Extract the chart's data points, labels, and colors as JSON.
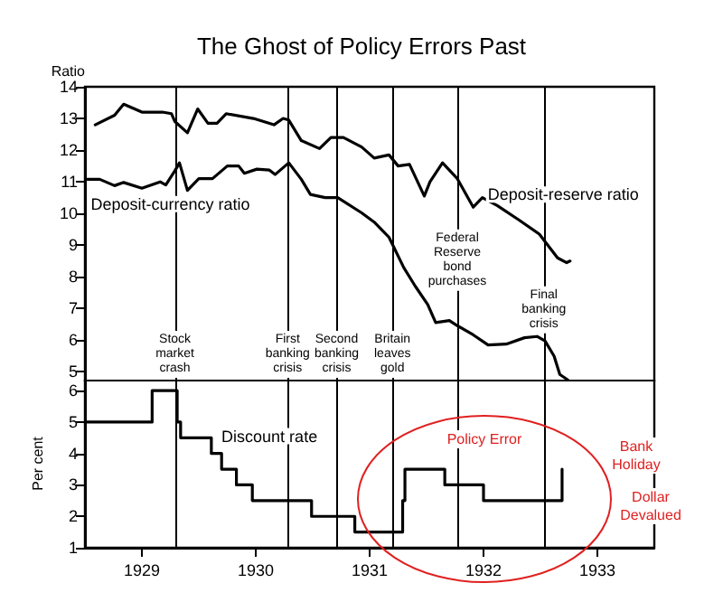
{
  "chart_data": [
    {
      "type": "line",
      "title": "The Ghost of Policy Errors Past",
      "ylabel": "Ratio",
      "xlim": [
        1929,
        1934
      ],
      "ylim": [
        4.7,
        14
      ],
      "yticks": [
        5,
        6,
        7,
        8,
        9,
        10,
        11,
        12,
        13,
        14
      ],
      "tick_labels": "y",
      "series": [
        {
          "name": "Deposit-reserve ratio",
          "color": "#000000",
          "x": [
            1929.09,
            1929.26,
            1929.34,
            1929.5,
            1929.68,
            1929.76,
            1929.79,
            1929.9,
            1929.99,
            1930.08,
            1930.16,
            1930.24,
            1930.48,
            1930.66,
            1930.74,
            1930.79,
            1930.9,
            1931.06,
            1931.16,
            1931.27,
            1931.43,
            1931.54,
            1931.67,
            1931.75,
            1931.85,
            1931.98,
            1932.03,
            1932.14,
            1932.27,
            1932.41,
            1932.49,
            1932.62,
            1932.81,
            1932.99,
            1933.15,
            1933.23,
            1933.26
          ],
          "values": [
            12.8,
            13.1,
            13.45,
            13.2,
            13.2,
            13.15,
            12.9,
            12.55,
            13.3,
            12.85,
            12.85,
            13.15,
            13.0,
            12.8,
            13.0,
            12.95,
            12.3,
            12.05,
            12.4,
            12.4,
            12.1,
            11.75,
            11.85,
            11.5,
            11.55,
            10.55,
            11.0,
            11.6,
            11.1,
            10.2,
            10.5,
            10.25,
            9.8,
            9.35,
            8.6,
            8.45,
            8.5
          ]
        },
        {
          "name": "Deposit-currency ratio",
          "color": "#000000",
          "x": [
            1929.02,
            1929.13,
            1929.26,
            1929.34,
            1929.5,
            1929.58,
            1929.66,
            1929.71,
            1929.79,
            1929.83,
            1929.9,
            1930.0,
            1930.12,
            1930.25,
            1930.35,
            1930.4,
            1930.51,
            1930.62,
            1930.67,
            1930.79,
            1930.9,
            1930.98,
            1931.11,
            1931.22,
            1931.43,
            1931.54,
            1931.67,
            1931.8,
            1931.9,
            1932.01,
            1932.08,
            1932.2,
            1932.27,
            1932.41,
            1932.54,
            1932.7,
            1932.86,
            1932.97,
            1933.04,
            1933.12,
            1933.17,
            1933.24
          ],
          "values": [
            11.08,
            11.08,
            10.88,
            10.98,
            10.8,
            10.9,
            11.0,
            10.9,
            11.35,
            11.6,
            10.73,
            11.1,
            11.1,
            11.5,
            11.5,
            11.27,
            11.4,
            11.37,
            11.23,
            11.6,
            11.08,
            10.6,
            10.5,
            10.5,
            10.02,
            9.73,
            9.25,
            8.29,
            7.71,
            7.13,
            6.56,
            6.62,
            6.46,
            6.17,
            5.85,
            5.88,
            6.08,
            6.12,
            5.98,
            5.5,
            4.92,
            4.75
          ]
        }
      ],
      "ref_lines": [
        {
          "axis": "x",
          "value": 1929.79,
          "label": "Stock market crash"
        },
        {
          "axis": "x",
          "value": 1930.78,
          "label": "First banking crisis"
        },
        {
          "axis": "x",
          "value": 1931.21,
          "label": "Second banking crisis"
        },
        {
          "axis": "x",
          "value": 1931.7,
          "label": "Britain leaves gold"
        },
        {
          "axis": "x",
          "value": 1932.27,
          "label": "Federal Reserve bond purchases"
        },
        {
          "axis": "x",
          "value": 1933.03,
          "label": "Final banking crisis"
        }
      ]
    },
    {
      "type": "step",
      "ylabel": "Per cent",
      "xlim": [
        1929,
        1934
      ],
      "ylim": [
        1,
        6.35
      ],
      "yticks": [
        1,
        2,
        3,
        4,
        5,
        6
      ],
      "xticks": [
        {
          "value": 1929.5,
          "label": "1929"
        },
        {
          "value": 1930.5,
          "label": "1930"
        },
        {
          "value": 1931.5,
          "label": "1931"
        },
        {
          "value": 1932.5,
          "label": "1932"
        },
        {
          "value": 1933.5,
          "label": "1933"
        }
      ],
      "series": [
        {
          "name": "Discount rate",
          "color": "#000000",
          "x": [
            1929.0,
            1929.59,
            1929.81,
            1929.84,
            1930.11,
            1930.2,
            1930.33,
            1930.47,
            1930.99,
            1931.37,
            1931.79,
            1931.81,
            1932.16,
            1932.5,
            1933.19
          ],
          "values": [
            5,
            6,
            5,
            4.5,
            4,
            3.5,
            3,
            2.5,
            2,
            1.5,
            2.5,
            3.5,
            3,
            2.5,
            3.5
          ]
        }
      ],
      "ref_lines": [
        {
          "axis": "x",
          "value": 1929.79
        },
        {
          "axis": "x",
          "value": 1930.78
        },
        {
          "axis": "x",
          "value": 1931.21
        },
        {
          "axis": "x",
          "value": 1931.7
        },
        {
          "axis": "x",
          "value": 1932.27
        },
        {
          "axis": "x",
          "value": 1933.03
        }
      ],
      "annotations": [
        "Policy Error",
        "Bank Holiday",
        "Dollar Devalued"
      ]
    }
  ]
}
